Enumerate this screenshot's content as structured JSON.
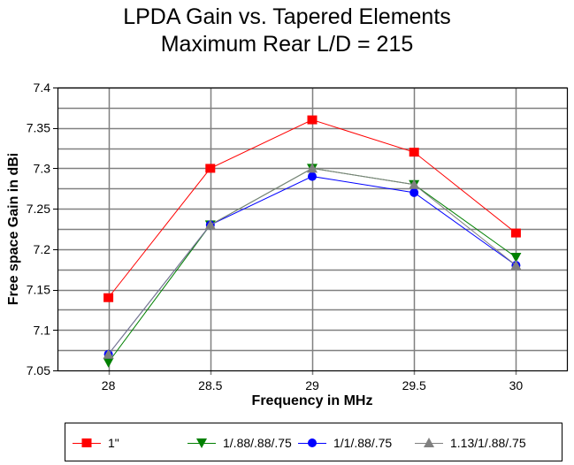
{
  "chart_data": {
    "type": "line",
    "title": [
      "LPDA Gain vs. Tapered Elements",
      "Maximum Rear L/D = 215"
    ],
    "xlabel": "Frequency in MHz",
    "ylabel": "Free space Gain in dBi",
    "x": [
      28,
      28.5,
      29,
      29.5,
      30
    ],
    "x_tick_labels": [
      "28",
      "28.5",
      "29",
      "29.5",
      "30"
    ],
    "xlim": [
      27.75,
      30.25
    ],
    "ylim": [
      7.05,
      7.4
    ],
    "y_ticks": [
      7.05,
      7.1,
      7.15,
      7.2,
      7.25,
      7.3,
      7.35,
      7.4
    ],
    "y_tick_labels": [
      "7.05",
      "7.1",
      "7.15",
      "7.2",
      "7.25",
      "7.3",
      "7.35",
      "7.4"
    ],
    "grid": true,
    "legend_position": "bottom",
    "series": [
      {
        "name": "1\"",
        "color": "#ff0000",
        "marker": "square",
        "values": [
          7.14,
          7.3,
          7.36,
          7.32,
          7.22
        ]
      },
      {
        "name": "1/.88/.88/.75",
        "color": "#008000",
        "marker": "triangle-down",
        "values": [
          7.06,
          7.23,
          7.3,
          7.28,
          7.19
        ]
      },
      {
        "name": "1/1/.88/.75",
        "color": "#0000ff",
        "marker": "circle",
        "values": [
          7.07,
          7.23,
          7.29,
          7.27,
          7.18
        ]
      },
      {
        "name": "1.13/1/.88/.75",
        "color": "#808080",
        "marker": "triangle-up",
        "values": [
          7.07,
          7.23,
          7.3,
          7.28,
          7.18
        ]
      }
    ]
  },
  "colors": {
    "grid": "#808080",
    "axis": "#000000"
  }
}
